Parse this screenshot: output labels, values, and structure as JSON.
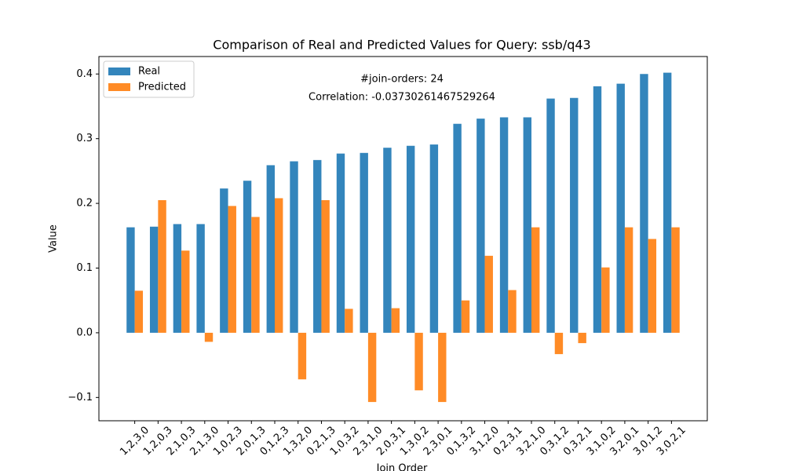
{
  "chart_data": {
    "type": "bar",
    "title": "Comparison of Real and Predicted Values for Query: ssb/q43",
    "xlabel": "Join Order",
    "ylabel": "Value",
    "annotations": [
      "#join-orders: 24",
      "Correlation: -0.03730261467529264"
    ],
    "categories": [
      "1,2,3,0",
      "1,2,0,3",
      "2,1,0,3",
      "2,1,3,0",
      "1,0,2,3",
      "2,0,1,3",
      "0,1,2,3",
      "1,3,2,0",
      "0,2,1,3",
      "1,0,3,2",
      "2,3,1,0",
      "2,0,3,1",
      "1,3,0,2",
      "2,3,0,1",
      "0,1,3,2",
      "3,1,2,0",
      "0,2,3,1",
      "3,2,1,0",
      "0,3,1,2",
      "0,3,2,1",
      "3,1,0,2",
      "3,2,0,1",
      "3,0,1,2",
      "3,0,2,1"
    ],
    "series": [
      {
        "name": "Real",
        "color": "#3385bc",
        "values": [
          0.163,
          0.164,
          0.168,
          0.168,
          0.223,
          0.235,
          0.259,
          0.265,
          0.267,
          0.277,
          0.278,
          0.286,
          0.289,
          0.291,
          0.323,
          0.331,
          0.333,
          0.333,
          0.362,
          0.363,
          0.381,
          0.385,
          0.4,
          0.402
        ]
      },
      {
        "name": "Predicted",
        "color": "#ff8b26",
        "values": [
          0.065,
          0.205,
          0.127,
          -0.014,
          0.196,
          0.179,
          0.208,
          -0.072,
          0.205,
          0.037,
          -0.107,
          0.038,
          -0.089,
          -0.107,
          0.05,
          0.119,
          0.066,
          0.163,
          -0.033,
          -0.016,
          0.101,
          0.163,
          0.145,
          0.163
        ]
      }
    ],
    "ylim": [
      -0.136,
      0.427
    ],
    "yticks": [
      {
        "value": -0.1,
        "label": "−0.1"
      },
      {
        "value": 0,
        "label": "0.0"
      },
      0.1,
      0.2,
      0.3,
      0.4
    ],
    "grid": false,
    "legend": "upper-left"
  }
}
